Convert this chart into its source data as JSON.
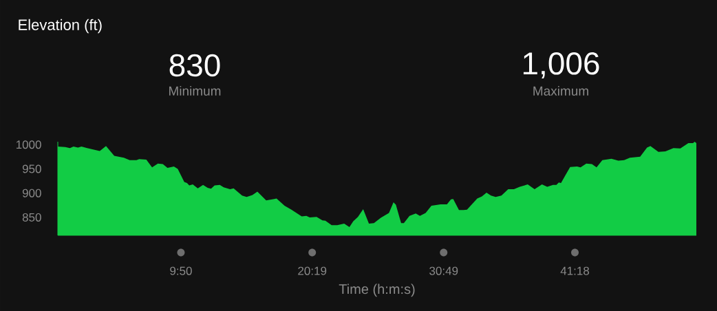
{
  "chart_data": {
    "type": "area",
    "title": "Elevation (ft)",
    "xlabel": "Time (h:m:s)",
    "annotations": [
      "830",
      "Minimum",
      "1,006",
      "Maximum"
    ],
    "x": [
      0,
      0.6,
      0.97,
      1.25,
      1.61,
      1.89,
      2.35,
      3.35,
      3.85,
      4.51,
      5.28,
      5.74,
      6.28,
      6.5,
      7.07,
      7.53,
      7.99,
      8.39,
      8.76,
      9.27,
      9.58,
      10.1,
      10.32,
      10.5,
      10.78,
      11.18,
      11.6,
      11.97,
      12.24,
      12.52,
      12.94,
      13.25,
      13.76,
      14.04,
      14.72,
      15.08,
      15.54,
      15.94,
      16.64,
      17.28,
      17.47,
      18.11,
      18.66,
      19.48,
      19.85,
      20.12,
      20.67,
      21.13,
      21.37,
      21.87,
      22.32,
      22.87,
      23.29,
      23.6,
      23.97,
      24.39,
      24.85,
      25.25,
      25.8,
      26.45,
      26.81,
      27.0,
      27.42,
      27.64,
      28.09,
      28.59,
      28.92,
      29.38,
      29.84,
      30.57,
      31.08,
      31.4,
      31.58,
      32.04,
      32.4,
      32.68,
      33.5,
      33.87,
      34.24,
      34.6,
      34.97,
      35.43,
      35.97,
      36.43,
      36.89,
      37.53,
      38.08,
      38.67,
      39.09,
      39.55,
      39.82,
      40.01,
      40.19,
      40.92,
      41.47,
      41.75,
      42.21,
      42.66,
      43.03,
      43.49,
      44.22,
      44.77,
      45.23,
      45.69,
      46.51,
      47.06,
      47.33,
      47.97,
      48.53,
      49.17,
      49.72,
      50.36,
      50.73,
      50.87,
      51.0
    ],
    "values": [
      996,
      995,
      993,
      996,
      994,
      996,
      993,
      987,
      997,
      977,
      973,
      968,
      968,
      970,
      969,
      953,
      961,
      960,
      952,
      955,
      950,
      923,
      921,
      916,
      918,
      910,
      917,
      911,
      909,
      916,
      917,
      912,
      908,
      910,
      895,
      892,
      896,
      903,
      885,
      888,
      889,
      874,
      866,
      852,
      853,
      850,
      851,
      844,
      843,
      834,
      834,
      837,
      830,
      842,
      851,
      867,
      837,
      838,
      849,
      859,
      881,
      876,
      838,
      838,
      853,
      858,
      853,
      859,
      874,
      877,
      877,
      887,
      888,
      865,
      865,
      866,
      889,
      893,
      901,
      895,
      892,
      895,
      908,
      908,
      913,
      918,
      908,
      918,
      913,
      917,
      917,
      922,
      921,
      954,
      955,
      953,
      961,
      960,
      953,
      968,
      971,
      967,
      968,
      973,
      975,
      994,
      997,
      985,
      986,
      993,
      992,
      1003,
      1003,
      1006,
      1003
    ],
    "color": "#12cc45",
    "xticks": [
      {
        "value": 9.8333,
        "label": "9:50"
      },
      {
        "value": 20.3167,
        "label": "20:19"
      },
      {
        "value": 30.8167,
        "label": "30:49"
      },
      {
        "value": 41.3,
        "label": "41:18"
      }
    ],
    "xlim": [
      0,
      51.0
    ],
    "ylim": [
      813,
      1006
    ],
    "yticks": [
      850,
      900,
      950,
      1000
    ]
  }
}
